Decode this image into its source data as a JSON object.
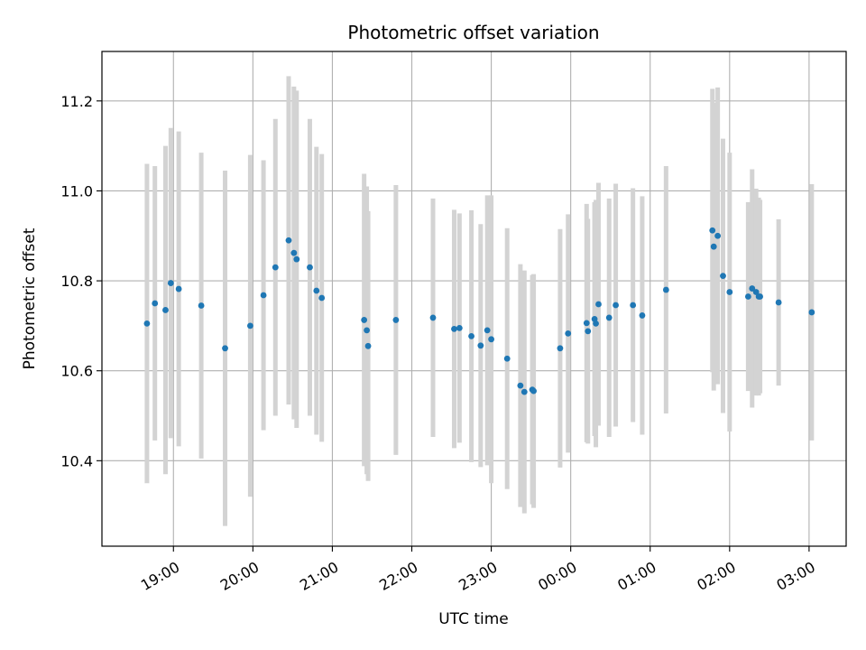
{
  "chart_data": {
    "type": "scatter",
    "title": "Photometric offset variation",
    "xlabel": "UTC time",
    "ylabel": "Photometric offset",
    "x_ticks": [
      "19:00",
      "20:00",
      "21:00",
      "22:00",
      "23:00",
      "00:00",
      "01:00",
      "02:00",
      "03:00"
    ],
    "y_ticks": [
      "10.4",
      "10.6",
      "10.8",
      "11.0",
      "11.2"
    ],
    "x_unit": "UTC hour (hours past 18:00 UTC on the night shown, continuing past midnight)",
    "xlim": [
      "18:06",
      "03:28"
    ],
    "ylim": [
      10.21,
      11.31
    ],
    "grid": true,
    "colors": {
      "point": "#1f77b4",
      "errorbar": "#d3d3d3",
      "grid": "#b0b0b0"
    },
    "series": [
      {
        "x": [
          "18:40",
          "18:46",
          "18:54",
          "18:58",
          "19:04",
          "19:21",
          "19:39",
          "19:58",
          "20:08",
          "20:17",
          "20:27",
          "20:31",
          "20:33",
          "20:43",
          "20:48",
          "20:52",
          "21:24",
          "21:26",
          "21:27",
          "21:48",
          "22:16",
          "22:32",
          "22:36",
          "22:45",
          "22:52",
          "22:57",
          "23:00",
          "23:12",
          "23:22",
          "23:25",
          "23:31",
          "23:32",
          "23:52",
          "23:58",
          "24:12",
          "24:13",
          "24:18",
          "24:19",
          "24:21",
          "24:29",
          "24:34",
          "24:47",
          "24:54",
          "25:12",
          "25:47",
          "25:48",
          "25:51",
          "25:55",
          "26:00",
          "26:14",
          "26:17",
          "26:20",
          "26:22",
          "26:23",
          "26:37",
          "27:02"
        ],
        "y": [
          10.705,
          10.75,
          10.735,
          10.795,
          10.782,
          10.745,
          10.65,
          10.7,
          10.768,
          10.83,
          10.89,
          10.862,
          10.848,
          10.83,
          10.778,
          10.762,
          10.713,
          10.69,
          10.655,
          10.713,
          10.718,
          10.693,
          10.695,
          10.677,
          10.656,
          10.69,
          10.67,
          10.627,
          10.567,
          10.553,
          10.558,
          10.555,
          10.65,
          10.683,
          10.706,
          10.688,
          10.715,
          10.705,
          10.748,
          10.718,
          10.746,
          10.746,
          10.723,
          10.78,
          10.912,
          10.876,
          10.9,
          10.811,
          10.775,
          10.765,
          10.783,
          10.775,
          10.765,
          10.765,
          10.752,
          10.73
        ],
        "err": [
          0.355,
          0.305,
          0.365,
          0.345,
          0.35,
          0.34,
          0.395,
          0.38,
          0.3,
          0.33,
          0.365,
          0.37,
          0.375,
          0.33,
          0.32,
          0.32,
          0.325,
          0.32,
          0.3,
          0.3,
          0.265,
          0.265,
          0.255,
          0.28,
          0.27,
          0.3,
          0.32,
          0.29,
          0.27,
          0.27,
          0.255,
          0.26,
          0.265,
          0.265,
          0.265,
          0.25,
          0.26,
          0.275,
          0.27,
          0.265,
          0.27,
          0.26,
          0.265,
          0.275,
          0.315,
          0.32,
          0.33,
          0.305,
          0.31,
          0.21,
          0.265,
          0.23,
          0.22,
          0.215,
          0.185,
          0.285
        ]
      }
    ]
  }
}
